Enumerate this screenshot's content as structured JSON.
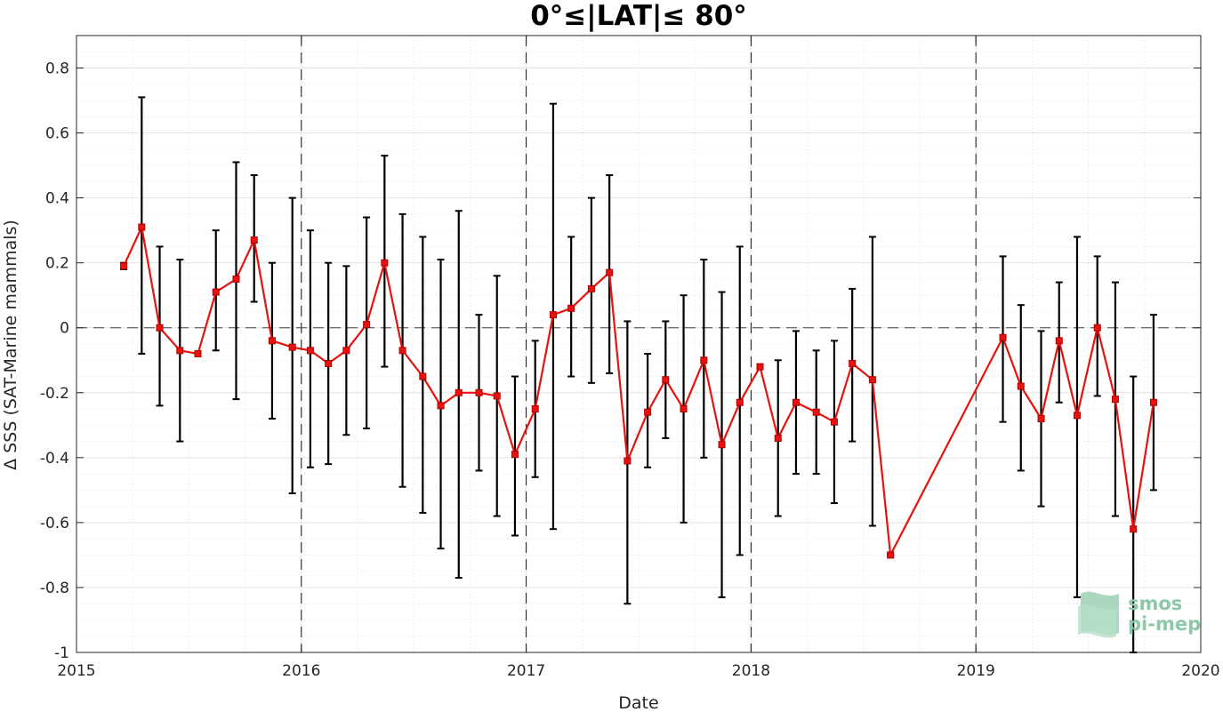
{
  "chart_data": {
    "type": "line",
    "title": "0°≤|LAT|≤ 80°",
    "xlabel": "Date",
    "ylabel": "Δ SSS (SAT-Marine mammals)",
    "xlim": [
      2015,
      2020
    ],
    "ylim": [
      -1,
      0.9
    ],
    "x_ticks": [
      "2015",
      "2016",
      "2017",
      "2018",
      "2019",
      "2020"
    ],
    "y_ticks": [
      "-1",
      "-0.8",
      "-0.6",
      "-0.4",
      "-0.2",
      "0",
      "0.2",
      "0.4",
      "0.6",
      "0.8"
    ],
    "grid": true,
    "year_separators": [
      2016,
      2017,
      2018,
      2019
    ],
    "zero_line": 0,
    "series": [
      {
        "color": "#e8120e",
        "errorbar_color": "#000000",
        "points": [
          {
            "x": 2015.21,
            "y": 0.19,
            "lo": 0.18,
            "hi": 0.2
          },
          {
            "x": 2015.29,
            "y": 0.31,
            "lo": -0.08,
            "hi": 0.71
          },
          {
            "x": 2015.37,
            "y": 0.0,
            "lo": -0.24,
            "hi": 0.25
          },
          {
            "x": 2015.46,
            "y": -0.07,
            "lo": -0.35,
            "hi": 0.21
          },
          {
            "x": 2015.54,
            "y": -0.08,
            "lo": -0.08,
            "hi": -0.08
          },
          {
            "x": 2015.62,
            "y": 0.11,
            "lo": -0.07,
            "hi": 0.3
          },
          {
            "x": 2015.71,
            "y": 0.15,
            "lo": -0.22,
            "hi": 0.51
          },
          {
            "x": 2015.79,
            "y": 0.27,
            "lo": 0.08,
            "hi": 0.47
          },
          {
            "x": 2015.87,
            "y": -0.04,
            "lo": -0.28,
            "hi": 0.2
          },
          {
            "x": 2015.96,
            "y": -0.06,
            "lo": -0.51,
            "hi": 0.4
          },
          {
            "x": 2016.04,
            "y": -0.07,
            "lo": -0.43,
            "hi": 0.3
          },
          {
            "x": 2016.12,
            "y": -0.11,
            "lo": -0.42,
            "hi": 0.2
          },
          {
            "x": 2016.2,
            "y": -0.07,
            "lo": -0.33,
            "hi": 0.19
          },
          {
            "x": 2016.29,
            "y": 0.01,
            "lo": -0.31,
            "hi": 0.34
          },
          {
            "x": 2016.37,
            "y": 0.2,
            "lo": -0.12,
            "hi": 0.53
          },
          {
            "x": 2016.45,
            "y": -0.07,
            "lo": -0.49,
            "hi": 0.35
          },
          {
            "x": 2016.54,
            "y": -0.15,
            "lo": -0.57,
            "hi": 0.28
          },
          {
            "x": 2016.62,
            "y": -0.24,
            "lo": -0.68,
            "hi": 0.21
          },
          {
            "x": 2016.7,
            "y": -0.2,
            "lo": -0.77,
            "hi": 0.36
          },
          {
            "x": 2016.79,
            "y": -0.2,
            "lo": -0.44,
            "hi": 0.04
          },
          {
            "x": 2016.87,
            "y": -0.21,
            "lo": -0.58,
            "hi": 0.16
          },
          {
            "x": 2016.95,
            "y": -0.39,
            "lo": -0.64,
            "hi": -0.15
          },
          {
            "x": 2017.04,
            "y": -0.25,
            "lo": -0.46,
            "hi": -0.04
          },
          {
            "x": 2017.12,
            "y": 0.04,
            "lo": -0.62,
            "hi": 0.69
          },
          {
            "x": 2017.2,
            "y": 0.06,
            "lo": -0.15,
            "hi": 0.28
          },
          {
            "x": 2017.29,
            "y": 0.12,
            "lo": -0.17,
            "hi": 0.4
          },
          {
            "x": 2017.37,
            "y": 0.17,
            "lo": -0.14,
            "hi": 0.47
          },
          {
            "x": 2017.45,
            "y": -0.41,
            "lo": -0.85,
            "hi": 0.02
          },
          {
            "x": 2017.54,
            "y": -0.26,
            "lo": -0.43,
            "hi": -0.08
          },
          {
            "x": 2017.62,
            "y": -0.16,
            "lo": -0.34,
            "hi": 0.02
          },
          {
            "x": 2017.7,
            "y": -0.25,
            "lo": -0.6,
            "hi": 0.1
          },
          {
            "x": 2017.79,
            "y": -0.1,
            "lo": -0.4,
            "hi": 0.21
          },
          {
            "x": 2017.87,
            "y": -0.36,
            "lo": -0.83,
            "hi": 0.11
          },
          {
            "x": 2017.95,
            "y": -0.23,
            "lo": -0.7,
            "hi": 0.25
          },
          {
            "x": 2018.04,
            "y": -0.12,
            "lo": -0.12,
            "hi": -0.12
          },
          {
            "x": 2018.12,
            "y": -0.34,
            "lo": -0.58,
            "hi": -0.1
          },
          {
            "x": 2018.2,
            "y": -0.23,
            "lo": -0.45,
            "hi": -0.01
          },
          {
            "x": 2018.29,
            "y": -0.26,
            "lo": -0.45,
            "hi": -0.07
          },
          {
            "x": 2018.37,
            "y": -0.29,
            "lo": -0.54,
            "hi": -0.04
          },
          {
            "x": 2018.45,
            "y": -0.11,
            "lo": -0.35,
            "hi": 0.12
          },
          {
            "x": 2018.54,
            "y": -0.16,
            "lo": -0.61,
            "hi": 0.28
          },
          {
            "x": 2018.62,
            "y": -0.7,
            "lo": -0.7,
            "hi": -0.7
          },
          {
            "x": 2019.12,
            "y": -0.03,
            "lo": -0.29,
            "hi": 0.22
          },
          {
            "x": 2019.2,
            "y": -0.18,
            "lo": -0.44,
            "hi": 0.07
          },
          {
            "x": 2019.29,
            "y": -0.28,
            "lo": -0.55,
            "hi": -0.01
          },
          {
            "x": 2019.37,
            "y": -0.04,
            "lo": -0.23,
            "hi": 0.14
          },
          {
            "x": 2019.45,
            "y": -0.27,
            "lo": -0.83,
            "hi": 0.28
          },
          {
            "x": 2019.54,
            "y": 0.0,
            "lo": -0.21,
            "hi": 0.22
          },
          {
            "x": 2019.62,
            "y": -0.22,
            "lo": -0.58,
            "hi": 0.14
          },
          {
            "x": 2019.7,
            "y": -0.62,
            "lo": -1.0,
            "hi": -0.15
          },
          {
            "x": 2019.79,
            "y": -0.23,
            "lo": -0.5,
            "hi": 0.04
          }
        ]
      }
    ]
  },
  "logo": {
    "line1": "smos",
    "line2": "pi-mep",
    "color": "#8dc9a8"
  }
}
